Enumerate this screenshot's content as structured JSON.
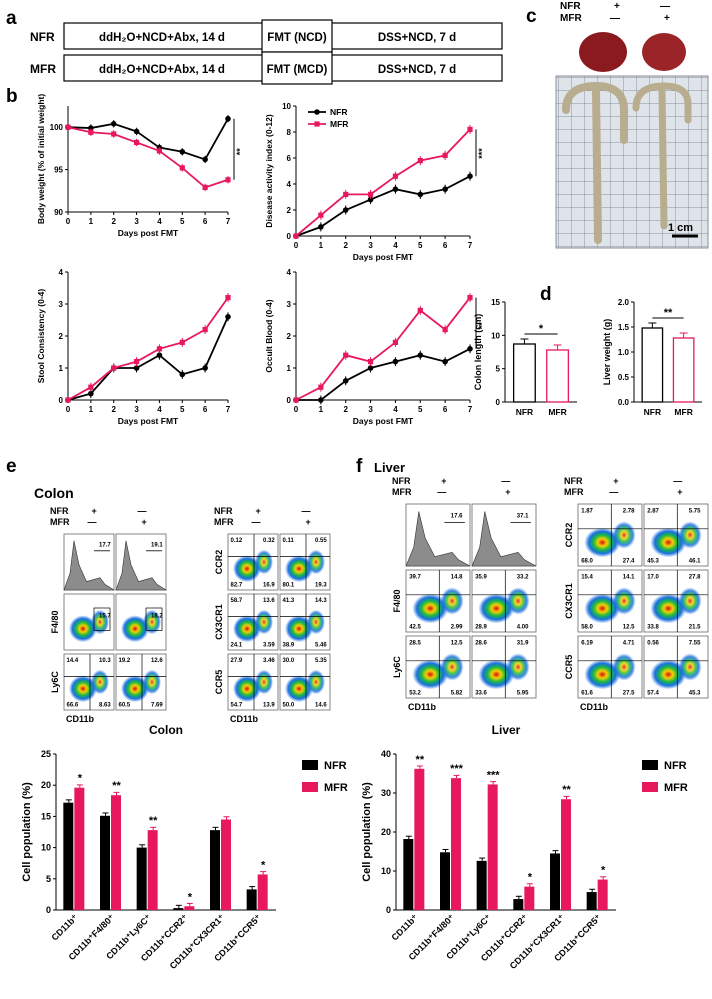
{
  "colors": {
    "nfr": "#000000",
    "mfr": "#e8185c",
    "grid": "#9a9a9a",
    "paper": "#dfe3ea",
    "colonTissue": "#b9ad8f",
    "liver": "#8a1a20"
  },
  "panels": {
    "a": "a",
    "b": "b",
    "c": "c",
    "d": "d",
    "e": "e",
    "f": "f"
  },
  "design": {
    "rows": [
      {
        "group": "NFR",
        "step1": "ddH₂O+NCD+Abx, 14 d",
        "step2": "FMT (NCD)",
        "step3": "DSS+NCD, 7 d"
      },
      {
        "group": "MFR",
        "step1": "ddH₂O+NCD+Abx, 14 d",
        "step2": "FMT (MCD)",
        "step3": "DSS+NCD, 7 d"
      }
    ]
  },
  "photo": {
    "nfr_label": "NFR",
    "mfr_label": "MFR",
    "plus": "+",
    "minus": "—",
    "scale": "1 cm"
  },
  "chart_data": [
    {
      "id": "body-weight",
      "type": "line",
      "xlabel": "Days post FMT",
      "ylabel": "Body weight (% of initial weight)",
      "x": [
        0,
        1,
        2,
        3,
        4,
        5,
        6,
        7
      ],
      "ylim": [
        90,
        102.5
      ],
      "yticks": [
        90,
        95,
        100
      ],
      "series": [
        {
          "name": "NFR",
          "values": [
            100,
            99.9,
            100.4,
            99.5,
            97.6,
            97.1,
            96.2,
            101
          ]
        },
        {
          "name": "MFR",
          "values": [
            100,
            99.4,
            99.2,
            98.2,
            97.2,
            95.2,
            92.9,
            93.8
          ]
        }
      ],
      "sig": "**"
    },
    {
      "id": "dai",
      "type": "line",
      "xlabel": "Days post FMT",
      "ylabel": "Disease activity index (0-12)",
      "x": [
        0,
        1,
        2,
        3,
        4,
        5,
        6,
        7
      ],
      "ylim": [
        0,
        10
      ],
      "yticks": [
        0,
        2,
        4,
        6,
        8,
        10
      ],
      "series": [
        {
          "name": "NFR",
          "values": [
            0,
            0.7,
            2,
            2.8,
            3.6,
            3.2,
            3.6,
            4.6
          ]
        },
        {
          "name": "MFR",
          "values": [
            0,
            1.6,
            3.2,
            3.2,
            4.6,
            5.8,
            6.2,
            8.2
          ]
        }
      ],
      "sig": "***",
      "legend": [
        "NFR",
        "MFR"
      ]
    },
    {
      "id": "stool",
      "type": "line",
      "xlabel": "Days post FMT",
      "ylabel": "Stool Consistency (0-4)",
      "x": [
        0,
        1,
        2,
        3,
        4,
        5,
        6,
        7
      ],
      "ylim": [
        0,
        4
      ],
      "yticks": [
        0,
        1,
        2,
        3,
        4
      ],
      "series": [
        {
          "name": "NFR",
          "values": [
            0,
            0.2,
            1,
            1,
            1.4,
            0.8,
            1,
            2.6
          ]
        },
        {
          "name": "MFR",
          "values": [
            0,
            0.4,
            1,
            1.2,
            1.6,
            1.8,
            2.2,
            3.2
          ]
        }
      ]
    },
    {
      "id": "blood",
      "type": "line",
      "xlabel": "Days post FMT",
      "ylabel": "Occult Blood (0-4)",
      "x": [
        0,
        1,
        2,
        3,
        4,
        5,
        6,
        7
      ],
      "ylim": [
        0,
        4
      ],
      "yticks": [
        0,
        1,
        2,
        3,
        4
      ],
      "series": [
        {
          "name": "NFR",
          "values": [
            0,
            0,
            0.6,
            1,
            1.2,
            1.4,
            1.2,
            1.6
          ]
        },
        {
          "name": "MFR",
          "values": [
            0,
            0.4,
            1.4,
            1.2,
            1.8,
            2.8,
            2.2,
            3.2
          ]
        }
      ],
      "sig": "**"
    },
    {
      "id": "colon-length",
      "type": "bar",
      "ylabel": "Colon length (cm)",
      "categories": [
        "NFR",
        "MFR"
      ],
      "values": [
        8.7,
        7.8
      ],
      "ylim": [
        0,
        15
      ],
      "yticks": [
        0,
        5,
        10,
        15
      ],
      "sig": "*"
    },
    {
      "id": "liver-weight",
      "type": "bar",
      "ylabel": "Liver weight (g)",
      "categories": [
        "NFR",
        "MFR"
      ],
      "values": [
        1.48,
        1.28
      ],
      "ylim": [
        0,
        2
      ],
      "yticks": [
        0.0,
        0.5,
        1.0,
        1.5,
        2.0
      ],
      "sig": "**"
    },
    {
      "id": "colon-cells",
      "type": "bar",
      "title": "Colon",
      "ylabel": "Cell population (%)",
      "ylim": [
        0,
        25
      ],
      "yticks": [
        0,
        5,
        10,
        15,
        20,
        25
      ],
      "categories": [
        "CD11b⁺",
        "CD11b⁺F4/80⁺",
        "CD11b⁺Ly6C⁺",
        "CD11b⁺CCR2⁺",
        "CD11b⁺CX3CR1⁺",
        "CD11b⁺CCR5⁺"
      ],
      "series": [
        {
          "name": "NFR",
          "values": [
            17.2,
            15.1,
            10,
            0.3,
            12.8,
            3.3
          ]
        },
        {
          "name": "MFR",
          "values": [
            19.6,
            18.4,
            12.8,
            0.6,
            14.5,
            5.7
          ]
        }
      ],
      "sig": [
        "*",
        "**",
        "**",
        "*",
        "",
        "*"
      ],
      "legend": [
        "NFR",
        "MFR"
      ]
    },
    {
      "id": "liver-cells",
      "type": "bar",
      "title": "Liver",
      "ylabel": "Cell population (%)",
      "ylim": [
        0,
        40
      ],
      "yticks": [
        0,
        10,
        20,
        30,
        40
      ],
      "categories": [
        "CD11b⁺",
        "CD11b⁺F4/80⁺",
        "CD11b⁺Ly6C⁺",
        "CD11b⁺CCR2⁺",
        "CD11b⁺CX3CR1⁺",
        "CD11b⁺CCR5⁺"
      ],
      "series": [
        {
          "name": "NFR",
          "values": [
            18.2,
            14.8,
            12.6,
            2.8,
            14.5,
            4.6
          ]
        },
        {
          "name": "MFR",
          "values": [
            36.2,
            33.8,
            32.2,
            6,
            28.4,
            7.8
          ]
        }
      ],
      "sig": [
        "**",
        "***",
        "***",
        "*",
        "**",
        "*"
      ],
      "legend": [
        "NFR",
        "MFR"
      ]
    }
  ],
  "flow": {
    "colon": {
      "title": "Colon",
      "xlabel": "CD11b",
      "nfr": "NFR",
      "mfr": "MFR",
      "plus": "+",
      "minus": "—",
      "histo": [
        "17.7",
        "19.1"
      ],
      "left": [
        {
          "label": "F4/80",
          "nfr": [
            "15.7"
          ],
          "mfr": [
            "18.2"
          ]
        },
        {
          "label": "Ly6C",
          "nfr": [
            "14.4",
            "10.3",
            "66.6",
            "8.63"
          ],
          "mfr": [
            "19.2",
            "12.6",
            "60.5",
            "7.69"
          ]
        }
      ],
      "right": [
        {
          "label": "CCR2",
          "nfr": [
            "0.12",
            "0.32",
            "82.7",
            "16.9"
          ],
          "mfr": [
            "0.11",
            "0.55",
            "80.1",
            "19.3"
          ]
        },
        {
          "label": "CX3CR1",
          "nfr": [
            "58.7",
            "13.6",
            "24.1",
            "3.59"
          ],
          "mfr": [
            "41.3",
            "14.3",
            "38.9",
            "5.46"
          ]
        },
        {
          "label": "CCR5",
          "nfr": [
            "27.9",
            "3.46",
            "54.7",
            "13.9"
          ],
          "mfr": [
            "30.0",
            "5.35",
            "50.0",
            "14.6"
          ]
        }
      ]
    },
    "liver": {
      "title": "Liver",
      "xlabel": "CD11b",
      "nfr": "NFR",
      "mfr": "MFR",
      "plus": "+",
      "minus": "—",
      "histo": [
        "17.6",
        "37.1"
      ],
      "left": [
        {
          "label": "F4/80",
          "nfr": [
            "39.7",
            "14.8",
            "42.5",
            "2.99"
          ],
          "mfr": [
            "35.9",
            "33.2",
            "28.9",
            "4.00"
          ]
        },
        {
          "label": "Ly6C",
          "nfr": [
            "28.5",
            "12.5",
            "53.2",
            "5.82"
          ],
          "mfr": [
            "28.6",
            "31.9",
            "33.6",
            "5.95"
          ]
        }
      ],
      "right": [
        {
          "label": "CCR2",
          "nfr": [
            "1.87",
            "2.78",
            "68.0",
            "27.4"
          ],
          "mfr": [
            "2.87",
            "5.75",
            "45.3",
            "46.1"
          ]
        },
        {
          "label": "CX3CR1",
          "nfr": [
            "15.4",
            "14.1",
            "58.0",
            "12.5"
          ],
          "mfr": [
            "17.0",
            "27.8",
            "33.8",
            "21.5"
          ]
        },
        {
          "label": "CCR5",
          "nfr": [
            "6.19",
            "4.71",
            "61.6",
            "27.5"
          ],
          "mfr": [
            "0.56",
            "7.55",
            "57.4",
            "45.3"
          ]
        }
      ]
    }
  }
}
